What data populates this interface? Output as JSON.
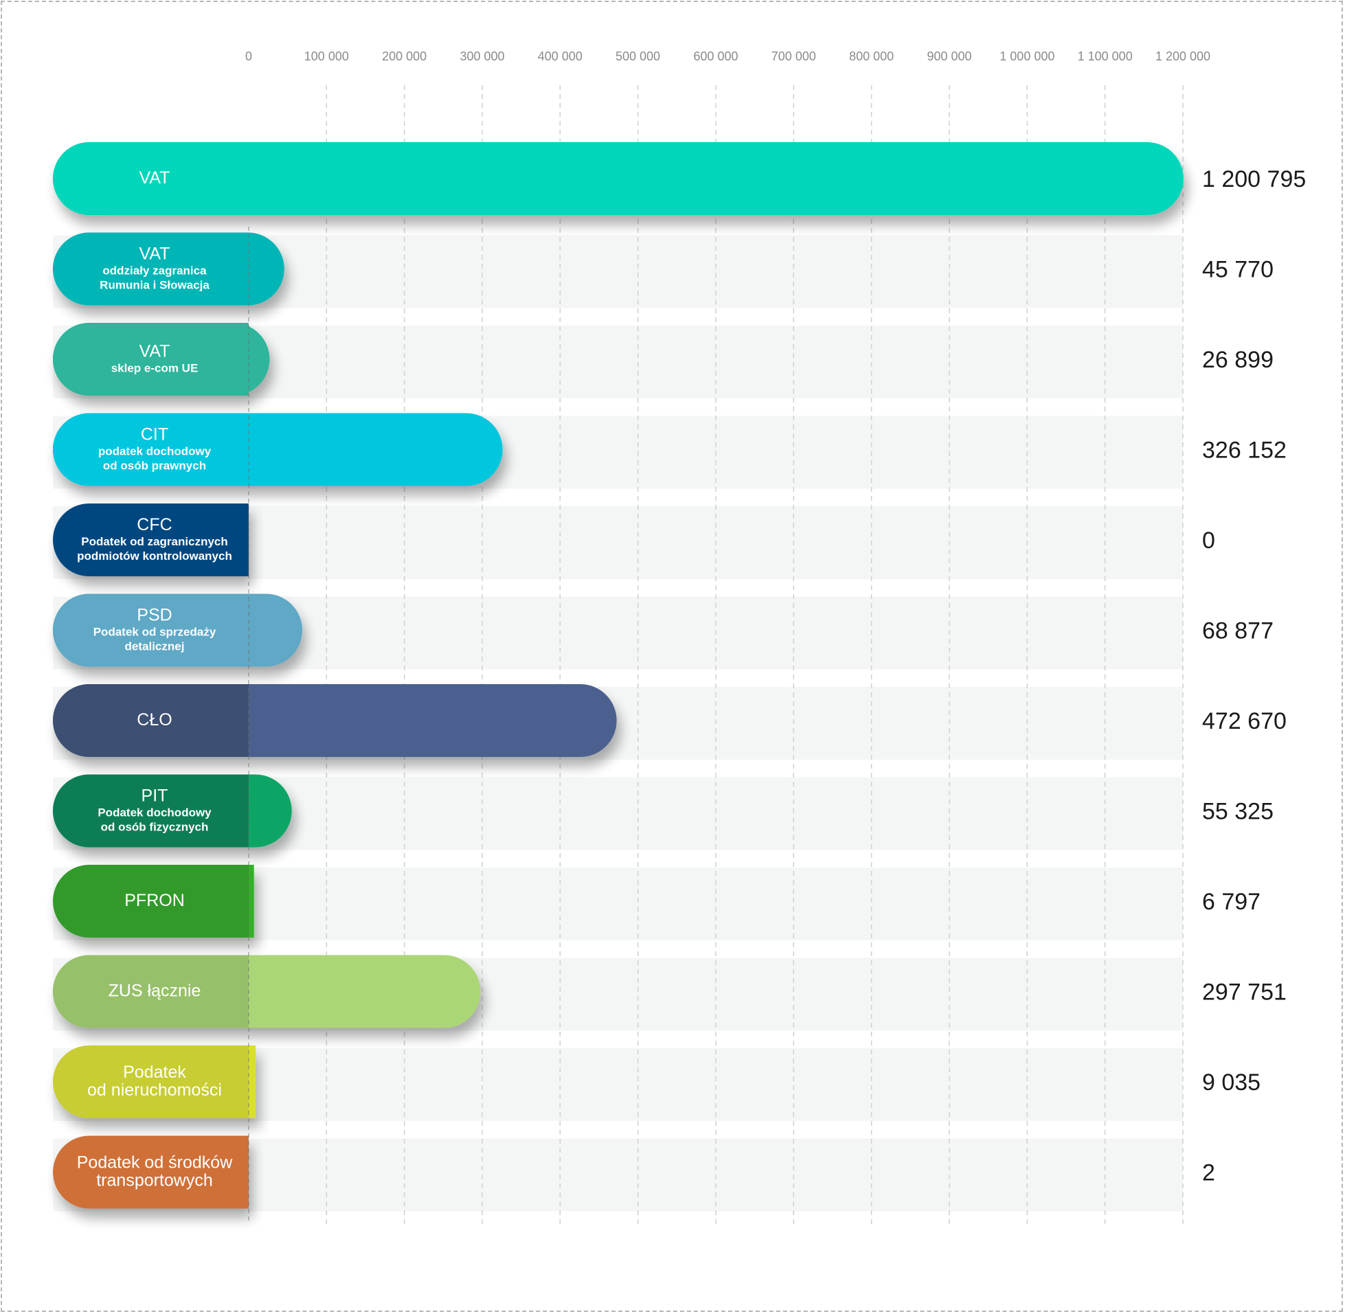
{
  "chart_data": {
    "type": "bar",
    "orientation": "horizontal",
    "title": "",
    "xlabel": "",
    "ylabel": "",
    "xlim": [
      0,
      1200000
    ],
    "x_ticks": [
      0,
      100000,
      200000,
      300000,
      400000,
      500000,
      600000,
      700000,
      800000,
      900000,
      1000000,
      1100000,
      1200000
    ],
    "x_tick_labels": [
      "0",
      "100 000",
      "200 000",
      "300 000",
      "400 000",
      "500 000",
      "600 000",
      "700 000",
      "800 000",
      "900 000",
      "1 000 000",
      "1 100 000",
      "1 200 000"
    ],
    "grid": "vertical dashed",
    "legend": "none",
    "categories": [
      {
        "name": "VAT",
        "subtitle": "",
        "value": 1200795,
        "value_label": "1 200 795",
        "pill_color": "#00d6b9",
        "bar_color": "#00d6b9"
      },
      {
        "name": "VAT",
        "subtitle": "oddziały zagranica\nRumunia i Słowacja",
        "value": 45770,
        "value_label": "45 770",
        "pill_color": "#00b5b6",
        "bar_color": "#00b5b6"
      },
      {
        "name": "VAT",
        "subtitle": "sklep e-com UE",
        "value": 26899,
        "value_label": "26 899",
        "pill_color": "#2db59b",
        "bar_color": "#2db59b"
      },
      {
        "name": "CIT",
        "subtitle": "podatek dochodowy\nod osób prawnych",
        "value": 326152,
        "value_label": "326 152",
        "pill_color": "#00c6de",
        "bar_color": "#00c6de"
      },
      {
        "name": "CFC",
        "subtitle": "Podatek od zagranicznych\npodmiotów kontrolowanych",
        "value": 0,
        "value_label": "0",
        "pill_color": "#034680",
        "bar_color": "#034680"
      },
      {
        "name": "PSD",
        "subtitle": "Podatek od sprzedaży\ndetalicznej",
        "value": 68877,
        "value_label": "68 877",
        "pill_color": "#5ea8c6",
        "bar_color": "#5ea8c6"
      },
      {
        "name": "CŁO",
        "subtitle": "",
        "value": 472670,
        "value_label": "472 670",
        "pill_color": "#3c4f72",
        "bar_color": "#4b618e"
      },
      {
        "name": "PIT",
        "subtitle": "Podatek dochodowy\nod osób fizycznych",
        "value": 55325,
        "value_label": "55 325",
        "pill_color": "#0c7d54",
        "bar_color": "#0ca566"
      },
      {
        "name": "PFRON",
        "subtitle": "",
        "value": 6797,
        "value_label": "6 797",
        "pill_color": "#329a2a",
        "bar_color": "#33b028"
      },
      {
        "name": "ZUS łącznie",
        "subtitle": "",
        "value": 297751,
        "value_label": "297 751",
        "pill_color": "#97c06a",
        "bar_color": "#abd674"
      },
      {
        "name": "Podatek\nod nieruchomości",
        "subtitle": "",
        "value": 9035,
        "value_label": "9 035",
        "pill_color": "#c7cd32",
        "bar_color": "#d9e02a"
      },
      {
        "name": "Podatek od środków\ntransportowych",
        "subtitle": "",
        "value": 2,
        "value_label": "2",
        "pill_color": "#cf6f38",
        "bar_color": "#cf6f38"
      }
    ]
  }
}
